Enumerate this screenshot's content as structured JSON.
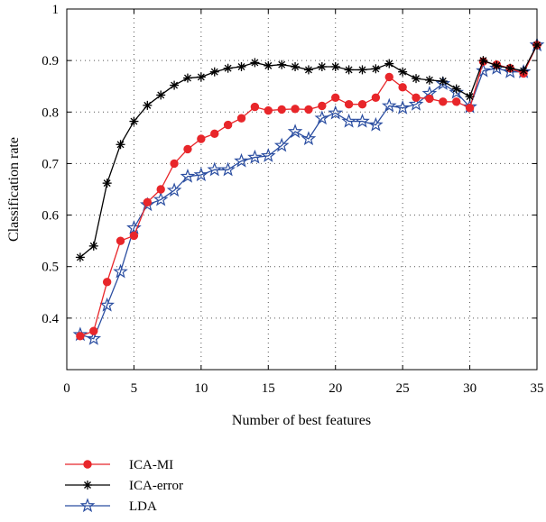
{
  "chart_data": {
    "type": "line",
    "title": "",
    "xlabel": "Number of best features",
    "ylabel": "Classification rate",
    "xlim": [
      0,
      35
    ],
    "ylim": [
      0.3,
      1.0
    ],
    "xticks": [
      0,
      5,
      10,
      15,
      20,
      25,
      30,
      35
    ],
    "yticks": [
      0.4,
      0.5,
      0.6,
      0.7,
      0.8,
      0.9,
      1
    ],
    "xtick_labels": [
      "0",
      "5",
      "10",
      "15",
      "20",
      "25",
      "30",
      "35"
    ],
    "ytick_labels": [
      "0.4",
      "0.5",
      "0.6",
      "0.7",
      "0.8",
      "0.9",
      "1"
    ],
    "grid": true,
    "legend_position": "below",
    "x": [
      1,
      2,
      3,
      4,
      5,
      6,
      7,
      8,
      9,
      10,
      11,
      12,
      13,
      14,
      15,
      16,
      17,
      18,
      19,
      20,
      21,
      22,
      23,
      24,
      25,
      26,
      27,
      28,
      29,
      30,
      31,
      32,
      33,
      34,
      35
    ],
    "series": [
      {
        "name": "ICA-MI",
        "color": "#e8262a",
        "marker": "circle",
        "values": [
          0.365,
          0.375,
          0.47,
          0.55,
          0.56,
          0.625,
          0.65,
          0.7,
          0.728,
          0.748,
          0.758,
          0.775,
          0.788,
          0.81,
          0.803,
          0.805,
          0.806,
          0.805,
          0.812,
          0.828,
          0.815,
          0.815,
          0.828,
          0.868,
          0.848,
          0.828,
          0.826,
          0.82,
          0.82,
          0.808,
          0.898,
          0.892,
          0.885,
          0.875,
          0.93
        ]
      },
      {
        "name": "ICA-error",
        "color": "#000000",
        "marker": "asterisk",
        "values": [
          0.518,
          0.54,
          0.662,
          0.737,
          0.782,
          0.813,
          0.833,
          0.852,
          0.866,
          0.868,
          0.878,
          0.885,
          0.888,
          0.896,
          0.89,
          0.892,
          0.888,
          0.882,
          0.888,
          0.888,
          0.882,
          0.882,
          0.884,
          0.894,
          0.878,
          0.865,
          0.862,
          0.86,
          0.845,
          0.83,
          0.9,
          0.89,
          0.885,
          0.88,
          0.93
        ]
      },
      {
        "name": "LDA",
        "color": "#2b4ea1",
        "marker": "star",
        "values": [
          0.368,
          0.36,
          0.425,
          0.49,
          0.575,
          0.62,
          0.63,
          0.648,
          0.675,
          0.678,
          0.688,
          0.688,
          0.705,
          0.712,
          0.715,
          0.735,
          0.762,
          0.748,
          0.788,
          0.798,
          0.782,
          0.782,
          0.775,
          0.812,
          0.808,
          0.815,
          0.836,
          0.855,
          0.838,
          0.81,
          0.88,
          0.885,
          0.878,
          0.878,
          0.93
        ]
      }
    ]
  }
}
